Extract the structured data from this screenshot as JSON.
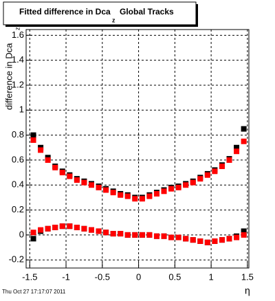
{
  "chart_data": {
    "type": "scatter",
    "title": "Fitted difference in Dca",
    "title_subscript": "z",
    "title_suffix": "Global Tracks",
    "ylabel": "difference in Dca",
    "ylabel_subscript": "z",
    "xlabel": "η",
    "footer": "Thu Oct 27 17:17:07 2011",
    "x": [
      -1.45,
      -1.35,
      -1.25,
      -1.15,
      -1.05,
      -0.95,
      -0.85,
      -0.75,
      -0.65,
      -0.55,
      -0.45,
      -0.35,
      -0.25,
      -0.15,
      -0.05,
      0.05,
      0.15,
      0.25,
      0.35,
      0.45,
      0.55,
      0.65,
      0.75,
      0.85,
      0.95,
      1.05,
      1.15,
      1.25,
      1.35,
      1.45
    ],
    "series": [
      {
        "color": "#000000",
        "values": [
          0.8,
          0.7,
          0.62,
          0.55,
          0.51,
          0.48,
          0.45,
          0.43,
          0.41,
          0.39,
          0.37,
          0.35,
          0.33,
          0.32,
          0.3,
          0.3,
          0.32,
          0.34,
          0.36,
          0.38,
          0.39,
          0.41,
          0.43,
          0.46,
          0.49,
          0.52,
          0.56,
          0.61,
          0.7,
          0.85
        ]
      },
      {
        "color": "#ff0000",
        "values": [
          0.76,
          0.68,
          0.6,
          0.54,
          0.5,
          0.47,
          0.44,
          0.42,
          0.4,
          0.38,
          0.36,
          0.34,
          0.32,
          0.31,
          0.29,
          0.29,
          0.31,
          0.33,
          0.35,
          0.37,
          0.38,
          0.4,
          0.42,
          0.45,
          0.48,
          0.51,
          0.55,
          0.6,
          0.67,
          0.75
        ]
      },
      {
        "color": "#000000",
        "values": [
          -0.03,
          0.03,
          0.05,
          0.06,
          0.07,
          0.07,
          0.06,
          0.05,
          0.04,
          0.03,
          0.02,
          0.01,
          0.01,
          0.0,
          0.0,
          0.0,
          0.0,
          -0.01,
          -0.01,
          -0.02,
          -0.02,
          -0.03,
          -0.04,
          -0.05,
          -0.06,
          -0.05,
          -0.04,
          -0.03,
          -0.01,
          0.03
        ]
      },
      {
        "color": "#ff0000",
        "values": [
          0.02,
          0.04,
          0.05,
          0.06,
          0.07,
          0.07,
          0.06,
          0.05,
          0.04,
          0.03,
          0.02,
          0.01,
          0.01,
          0.0,
          0.0,
          0.0,
          0.0,
          -0.01,
          -0.01,
          -0.02,
          -0.02,
          -0.03,
          -0.04,
          -0.05,
          -0.06,
          -0.05,
          -0.04,
          -0.03,
          -0.02,
          0.0
        ]
      }
    ],
    "xlim": [
      -1.55,
      1.52
    ],
    "ylim": [
      -0.265,
      1.646
    ],
    "xticks": [
      -1.5,
      -1,
      -0.5,
      0,
      0.5,
      1,
      1.5
    ],
    "yticks": [
      -0.2,
      0,
      0.2,
      0.4,
      0.6,
      0.8,
      1,
      1.2,
      1.4,
      1.6
    ],
    "grid": true
  }
}
